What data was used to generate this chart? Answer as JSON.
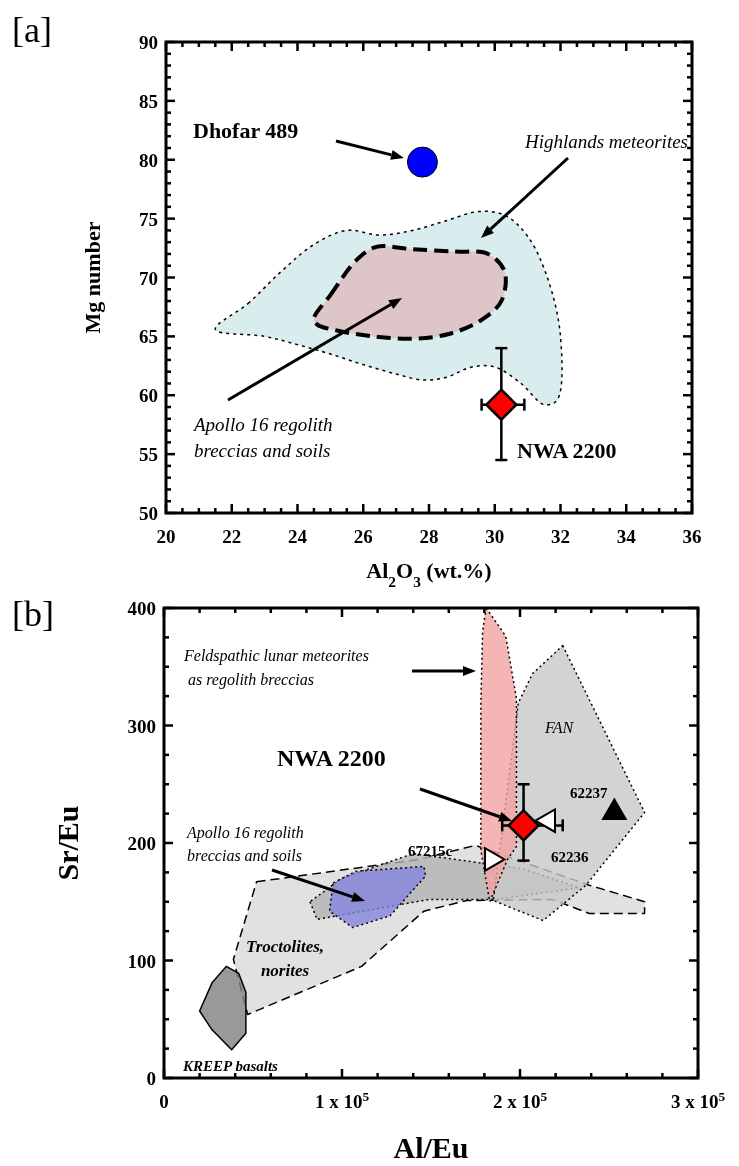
{
  "chart_data": [
    {
      "type": "scatter",
      "title": "[a]",
      "xlabel": "Al$_{2}$O$_{3}$ (wt.%)",
      "ylabel": "Mg number",
      "xlim": [
        20,
        36
      ],
      "ylim": [
        50,
        90
      ],
      "xticks": [
        20,
        22,
        24,
        26,
        28,
        30,
        32,
        34,
        36
      ],
      "yticks": [
        50,
        55,
        60,
        65,
        70,
        75,
        80,
        85,
        90
      ],
      "series": [
        {
          "type": "area",
          "name": "Highlands meteorites",
          "color": "#cfe7ea",
          "line_style": "dotted",
          "x": [
            21.5,
            22.5,
            23.5,
            24.5,
            25.5,
            26.5,
            27.5,
            28.5,
            29.5,
            30.3,
            31.0,
            31.6,
            32.0,
            31.9,
            31.5,
            30.8,
            30.0,
            29.3,
            28.5,
            27.8,
            27.0,
            26.0,
            25.0,
            24.0,
            23.0
          ],
          "values": [
            65.6,
            67.8,
            70.5,
            72.8,
            74.0,
            73.6,
            74.0,
            74.8,
            75.6,
            75.3,
            73.5,
            70.0,
            65.0,
            59.6,
            59.2,
            61.0,
            62.4,
            62.4,
            61.5,
            61.3,
            61.8,
            62.6,
            63.5,
            64.3,
            65.0
          ]
        },
        {
          "type": "area",
          "name": "Apollo 16 regolith\nbreccias and soils",
          "color": "#ddbcbe",
          "line_style": "dashed",
          "x": [
            24.5,
            25.0,
            25.8,
            26.4,
            27.5,
            28.8,
            29.8,
            30.3,
            30.2,
            29.6,
            28.6,
            27.5,
            26.3,
            25.2,
            24.6
          ],
          "values": [
            66.5,
            68.5,
            71.5,
            72.6,
            72.4,
            72.2,
            72.0,
            70.5,
            68.0,
            66.4,
            65.2,
            64.8,
            65.0,
            65.5,
            66.0
          ]
        },
        {
          "type": "scatter",
          "color": "#0000ff",
          "marker": "circle",
          "x": [
            27.8
          ],
          "values": [
            79.8
          ]
        },
        {
          "type": "scatter",
          "name": "NWA 2200",
          "color": "#ff0000",
          "marker": "diamond",
          "x": [
            30.2
          ],
          "values": [
            59.2
          ],
          "errors": [
            [
              54.5,
              64
            ]
          ],
          "xerrors": [
            [
              29.6,
              30.9
            ]
          ]
        }
      ],
      "annotations": [
        "Dhofar 489"
      ]
    },
    {
      "type": "scatter",
      "title": "[b]",
      "xlabel": "Al/Eu",
      "ylabel": "Sr/Eu",
      "xlim": [
        0,
        300000
      ],
      "ylim": [
        0,
        400
      ],
      "xticks": [
        0,
        {
          "value": 100000,
          "label": "1 x 10$^{5}$"
        },
        {
          "value": 200000,
          "label": "2 x 10$^{5}$"
        },
        {
          "value": 300000,
          "label": "3 x 10$^{5}$"
        }
      ],
      "yticks": [
        0,
        100,
        200,
        300,
        400
      ],
      "series": [
        {
          "type": "area",
          "name": "Troctolites,\nnorites",
          "color": "#d9d9d9",
          "line_style": "dashed",
          "x": [
            52000,
            143000,
            175000,
            239000,
            270000,
            270000,
            239000,
            218000,
            170000,
            146000,
            111000,
            47000,
            39000
          ],
          "values": [
            167,
            186,
            198,
            164,
            150,
            140,
            140,
            152,
            151,
            142,
            95,
            54,
            101
          ]
        },
        {
          "type": "area",
          "color": "#b3b3b3",
          "line_style": "dotted",
          "x": [
            82000,
            86000,
            149000,
            187000,
            233000,
            202000,
            140000,
            100000
          ],
          "values": [
            150,
            135,
            152,
            152,
            162,
            178,
            191,
            170
          ]
        },
        {
          "type": "area",
          "name": "FAN",
          "color": "#c8c8c8",
          "line_style": "dotted",
          "x": [
            224000,
            270000,
            237000,
            213000,
            185000,
            199000,
            207000
          ],
          "values": [
            368,
            226,
            164,
            134,
            151,
            319,
            344
          ]
        },
        {
          "type": "area",
          "color": "#f4a3a3",
          "line_style": "dotted",
          "x": [
            181000,
            192000,
            198000,
            198000,
            193000,
            183000,
            178000,
            178000,
            179000
          ],
          "values": [
            400,
            376,
            323,
            197,
            186,
            150,
            194,
            319,
            380
          ]
        },
        {
          "type": "area",
          "name": "Apollo 16 regolith\nbreccias and soils",
          "color": "#8585dd",
          "line_style": "dotted",
          "x": [
            95000,
            108000,
            146000,
            147000,
            127000,
            106000,
            93000
          ],
          "values": [
            166,
            176,
            180,
            172,
            138,
            128,
            142
          ]
        },
        {
          "type": "area",
          "name": "KREEP basalts",
          "color": "#808080",
          "line_style": "solid",
          "x": [
            35000,
            42000,
            46000,
            46000,
            38000,
            27000,
            20000,
            27000
          ],
          "values": [
            95,
            89,
            73,
            38,
            24,
            41,
            57,
            81
          ]
        },
        {
          "type": "scatter",
          "color": "#ff0000",
          "marker": "diamond",
          "x": [
            202000
          ],
          "values": [
            215
          ],
          "errors": [
            [
              185,
              250
            ]
          ],
          "xerrors": [
            [
              190000,
              224000
            ]
          ]
        },
        {
          "type": "scatter",
          "color": "#ffffff",
          "marker": "triangle",
          "x": [
            216000
          ],
          "values": [
            219
          ]
        },
        {
          "type": "scatter",
          "color": "#ffffff",
          "marker": "triangle",
          "x": [
            184000
          ],
          "values": [
            186
          ]
        },
        {
          "type": "scatter",
          "name": "62237",
          "color": "#000000",
          "marker": "triangle",
          "x": [
            253000
          ],
          "values": [
            226
          ]
        }
      ],
      "annotations": [
        "Feldspathic lunar meteorites\n as regolith breccias",
        "NWA 2200",
        {
          "text": "62236",
          "x": 216000,
          "y": 219
        },
        {
          "text": "67215c",
          "x": 184000,
          "y": 186
        }
      ]
    }
  ]
}
